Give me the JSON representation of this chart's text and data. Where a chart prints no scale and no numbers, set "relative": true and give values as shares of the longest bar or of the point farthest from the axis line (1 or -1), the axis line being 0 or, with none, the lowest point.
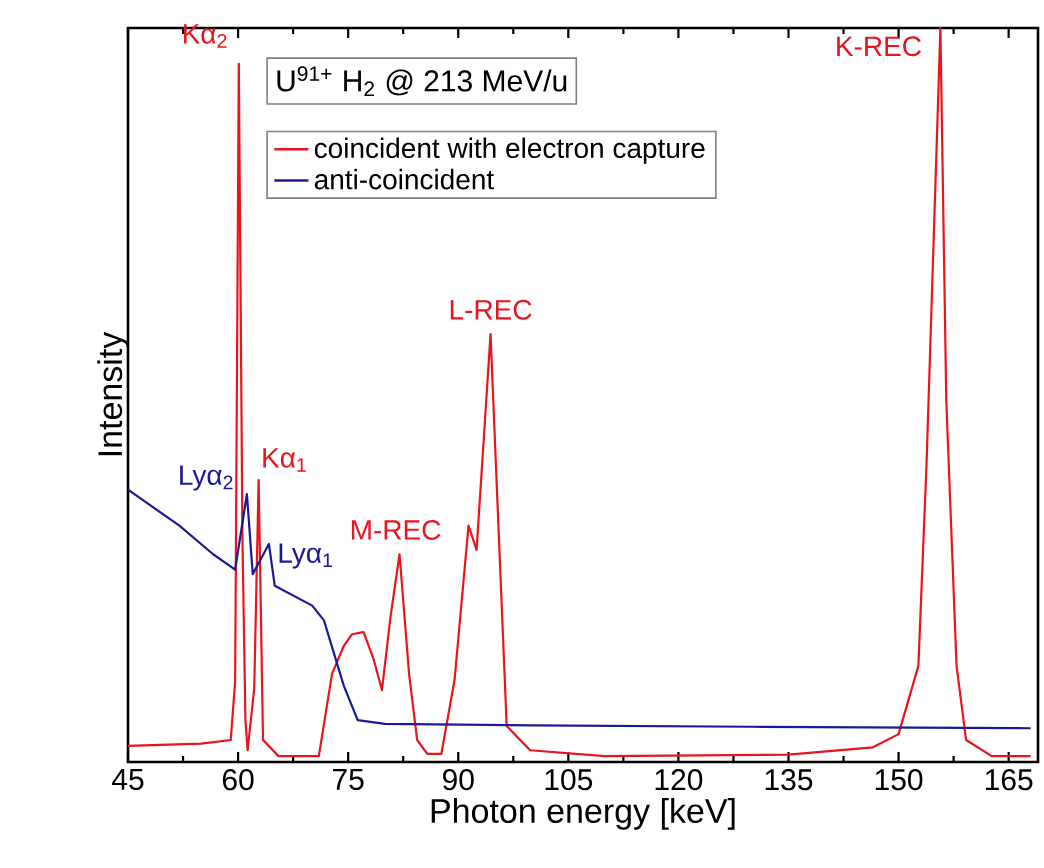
{
  "chart_data": {
    "type": "line",
    "relative": true,
    "xlabel": "Photon energy [keV]",
    "ylabel": "Intensity",
    "legend_title": "U$^{91+}$ H$_{2}$ @ 213 MeV/u",
    "legend": "top",
    "grid": false,
    "line_style": "solid",
    "marker": "none",
    "tick_labels": "x",
    "xlim": [
      45,
      169
    ],
    "xticks": [
      45,
      60,
      75,
      90,
      105,
      120,
      135,
      150,
      165
    ],
    "series": [
      {
        "name": "coincident with electron capture",
        "color": "#e8141e",
        "x": [
          45,
          55,
          59.0,
          59.6,
          60.1,
          60.6,
          61.0,
          61.3,
          62.2,
          62.8,
          63.4,
          65.5,
          71,
          72.8,
          74.4,
          75.5,
          77.1,
          78.5,
          79.6,
          80.8,
          82.0,
          83.3,
          84.4,
          85.8,
          87.7,
          89.5,
          91.4,
          92.5,
          94.4,
          96.6,
          99.8,
          110,
          135,
          146.5,
          150,
          152.7,
          153.8,
          155.7,
          156.5,
          157.9,
          159.2,
          162.7,
          168
        ],
        "values": [
          0.022,
          0.025,
          0.03,
          0.11,
          0.951,
          0.3,
          0.057,
          0.016,
          0.1,
          0.384,
          0.03,
          0.008,
          0.008,
          0.12,
          0.158,
          0.174,
          0.177,
          0.139,
          0.098,
          0.2,
          0.283,
          0.12,
          0.03,
          0.011,
          0.011,
          0.112,
          0.322,
          0.289,
          0.583,
          0.049,
          0.016,
          0.008,
          0.01,
          0.02,
          0.038,
          0.131,
          0.403,
          1,
          0.493,
          0.131,
          0.03,
          0.008,
          0.008
        ]
      },
      {
        "name": "anti-coincident",
        "color": "#1a1a96",
        "x": [
          45,
          52,
          56.6,
          59.6,
          61.2,
          62.0,
          64.2,
          65,
          70.1,
          71.7,
          74.4,
          76.3,
          80,
          100,
          130,
          168
        ],
        "values": [
          0.371,
          0.322,
          0.283,
          0.262,
          0.365,
          0.256,
          0.297,
          0.24,
          0.213,
          0.193,
          0.104,
          0.057,
          0.052,
          0.05,
          0.048,
          0.046
        ]
      }
    ],
    "annotations": [
      {
        "text": "Kα$_{2}$",
        "x": 60.1,
        "y": 0.951
      },
      {
        "text": "Kα$_{1}$",
        "x": 62.8,
        "y": 0.384
      },
      {
        "text": "Lyα$_{2}$",
        "x": 61.2,
        "y": 0.365
      },
      {
        "text": "Lyα$_{1}$",
        "x": 64.2,
        "y": 0.297
      },
      {
        "text": "M-REC",
        "x": 82.0,
        "y": 0.283
      },
      {
        "text": "L-REC",
        "x": 94.4,
        "y": 0.583
      },
      {
        "text": "K-REC",
        "x": 155.7,
        "y": 1
      }
    ]
  }
}
